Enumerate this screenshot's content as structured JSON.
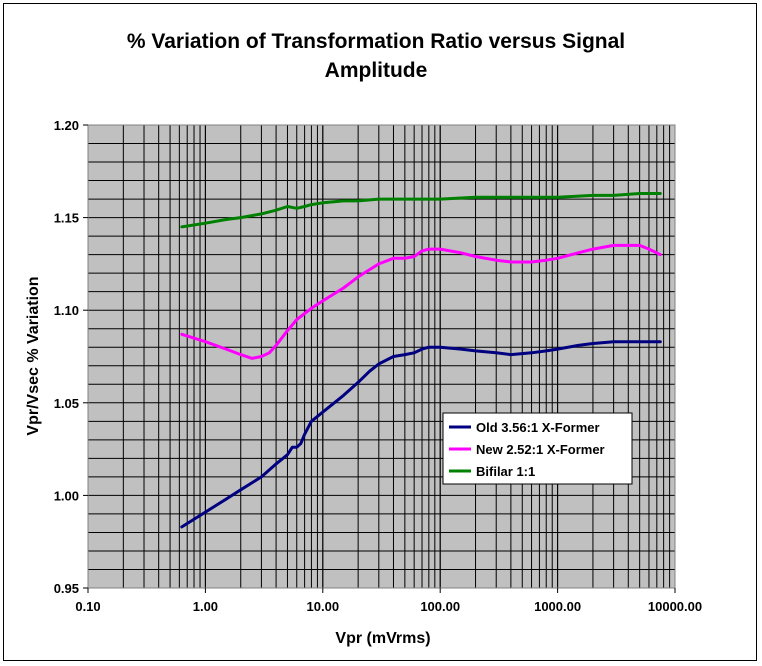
{
  "chart_data": {
    "type": "line",
    "title": "% Variation of Transformation Ratio versus Signal Amplitude",
    "title_lines": [
      "% Variation of Transformation Ratio versus Signal",
      "Amplitude"
    ],
    "xlabel": "Vpr (mVrms)",
    "ylabel": "Vpr/Vsec % Variation",
    "x_scale": "log",
    "xlim": [
      0.1,
      10000
    ],
    "ylim": [
      0.95,
      1.2
    ],
    "x_tick_labels": [
      "0.10",
      "1.00",
      "10.00",
      "100.00",
      "1000.00",
      "10000.00"
    ],
    "x_ticks": [
      0.1,
      1,
      10,
      100,
      1000,
      10000
    ],
    "y_tick_labels": [
      "0.95",
      "1.00",
      "1.05",
      "1.10",
      "1.15",
      "1.20"
    ],
    "y_ticks": [
      0.95,
      1.0,
      1.05,
      1.1,
      1.15,
      1.2
    ],
    "grid": true,
    "plot_background": "#c0c0c0",
    "legend_position": "inside-lower-right",
    "series": [
      {
        "name": "Old 3.56:1 X-Former",
        "color": "#000080",
        "x": [
          0.63,
          1.0,
          1.5,
          2.0,
          3.0,
          4.0,
          5.0,
          5.5,
          6.0,
          6.5,
          7.0,
          8.0,
          10,
          15,
          20,
          25,
          30,
          40,
          50,
          60,
          70,
          80,
          100,
          150,
          200,
          300,
          400,
          600,
          800,
          1000,
          1500,
          2000,
          3000,
          4000,
          5000,
          6000,
          7500
        ],
        "y": [
          0.983,
          0.991,
          0.998,
          1.003,
          1.01,
          1.017,
          1.022,
          1.026,
          1.026,
          1.028,
          1.033,
          1.04,
          1.045,
          1.054,
          1.061,
          1.067,
          1.071,
          1.075,
          1.076,
          1.077,
          1.079,
          1.08,
          1.08,
          1.079,
          1.078,
          1.077,
          1.076,
          1.077,
          1.078,
          1.079,
          1.081,
          1.082,
          1.083,
          1.083,
          1.083,
          1.083,
          1.083
        ]
      },
      {
        "name": "New 2.52:1 X-Former",
        "color": "#ff00ff",
        "x": [
          0.63,
          1.0,
          1.5,
          2.0,
          2.5,
          3.0,
          3.5,
          4.0,
          5.0,
          6.0,
          8.0,
          10,
          15,
          20,
          30,
          40,
          50,
          60,
          70,
          80,
          100,
          150,
          200,
          300,
          400,
          600,
          800,
          1000,
          1500,
          2000,
          3000,
          4000,
          5000,
          6000,
          7500
        ],
        "y": [
          1.087,
          1.083,
          1.079,
          1.076,
          1.074,
          1.075,
          1.077,
          1.081,
          1.089,
          1.095,
          1.101,
          1.105,
          1.112,
          1.118,
          1.125,
          1.128,
          1.128,
          1.129,
          1.132,
          1.133,
          1.133,
          1.131,
          1.129,
          1.127,
          1.126,
          1.126,
          1.127,
          1.128,
          1.131,
          1.133,
          1.135,
          1.135,
          1.135,
          1.133,
          1.13
        ]
      },
      {
        "name": "Bifilar 1:1",
        "color": "#008000",
        "x": [
          0.63,
          1.0,
          1.5,
          2.0,
          3.0,
          4.0,
          5.0,
          6.0,
          7.0,
          8.0,
          10,
          15,
          20,
          30,
          50,
          100,
          200,
          500,
          1000,
          2000,
          3000,
          5000,
          7500
        ],
        "y": [
          1.145,
          1.147,
          1.149,
          1.15,
          1.152,
          1.154,
          1.156,
          1.155,
          1.156,
          1.157,
          1.158,
          1.159,
          1.159,
          1.16,
          1.16,
          1.16,
          1.161,
          1.161,
          1.161,
          1.162,
          1.162,
          1.163,
          1.163
        ]
      }
    ]
  }
}
